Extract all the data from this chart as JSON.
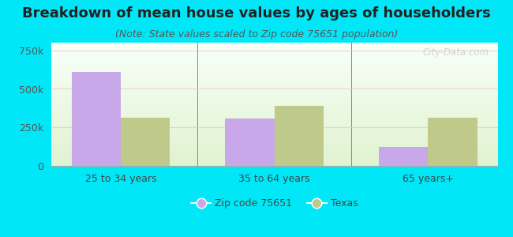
{
  "title": "Breakdown of mean house values by ages of householders",
  "subtitle": "(Note: State values scaled to Zip code 75651 population)",
  "categories": [
    "25 to 34 years",
    "35 to 64 years",
    "65 years+"
  ],
  "zip_values": [
    610000,
    310000,
    125000
  ],
  "state_values": [
    315000,
    390000,
    315000
  ],
  "zip_color": "#c8a8e8",
  "state_color": "#bec98a",
  "background_outer": "#00e8f8",
  "ylim": [
    0,
    800000
  ],
  "yticks": [
    0,
    250000,
    500000,
    750000
  ],
  "ytick_labels": [
    "0",
    "250k",
    "500k",
    "750k"
  ],
  "legend_zip": "Zip code 75651",
  "legend_state": "Texas",
  "bar_width": 0.32,
  "title_fontsize": 13,
  "subtitle_fontsize": 9,
  "watermark": "City-Data.com"
}
